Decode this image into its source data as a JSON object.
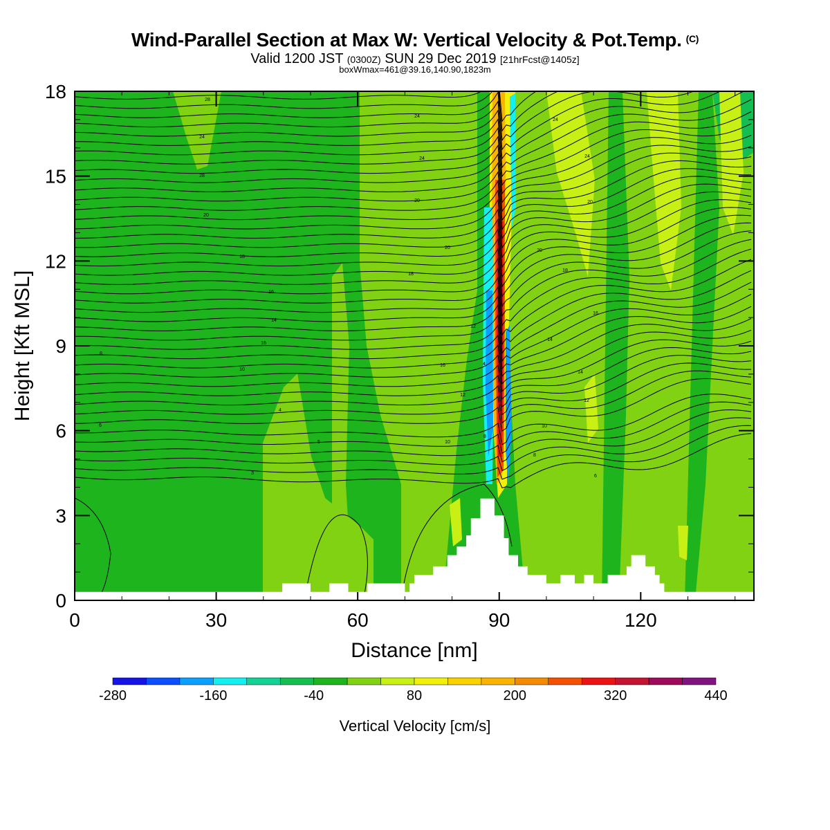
{
  "header": {
    "title": "Wind-Parallel Section at Max W: Vertical Velocity & Pot.Temp.",
    "copyright": "(C)",
    "valid_prefix": "Valid 1200 JST",
    "valid_utc": "(0300Z)",
    "valid_date": "SUN 29 Dec 2019",
    "forecast_info": "[21hrFcst@1405z]",
    "box_info": "boxWmax=461@39.16,140.90,1823m"
  },
  "chart_data": {
    "type": "heatmap",
    "xlabel": "Distance [nm]",
    "ylabel": "Height [Kft MSL]",
    "xlim": [
      0,
      144
    ],
    "ylim": [
      0,
      18
    ],
    "xticks": [
      0,
      30,
      60,
      90,
      120
    ],
    "yticks": [
      0,
      3,
      6,
      9,
      12,
      15,
      18
    ],
    "colorbar": {
      "label": "Vertical Velocity [cm/s]",
      "levels": [
        -280,
        -240,
        -200,
        -160,
        -120,
        -80,
        -40,
        0,
        40,
        80,
        120,
        160,
        200,
        240,
        280,
        320,
        360,
        400,
        440
      ],
      "tick_labels": [
        "-280",
        "-160",
        "-40",
        "80",
        "200",
        "320",
        "440"
      ],
      "colors": [
        "#1414e6",
        "#0a50ff",
        "#0aa0ff",
        "#14f0f0",
        "#14d296",
        "#14be50",
        "#1eb41e",
        "#82d214",
        "#c8f014",
        "#f0f00a",
        "#fad200",
        "#fab400",
        "#f58c00",
        "#f55000",
        "#eb1414",
        "#c31432",
        "#a00a5a",
        "#821482"
      ]
    },
    "theta_contour_labels": [
      "28",
      "24",
      "28",
      "20",
      "18",
      "16",
      "14",
      "16",
      "10",
      "8",
      "6",
      "4",
      "3",
      "24",
      "24",
      "20",
      "20",
      "18",
      "12",
      "16",
      "12",
      "10",
      "8",
      "5",
      "24",
      "24",
      "20",
      "20",
      "18",
      "16",
      "14",
      "14",
      "12",
      "10",
      "8",
      "6",
      "4"
    ],
    "terrain_profile_kft": [
      [
        0,
        0.3
      ],
      [
        44,
        0.3
      ],
      [
        44,
        0.6
      ],
      [
        50,
        0.6
      ],
      [
        50,
        0.3
      ],
      [
        54,
        0.3
      ],
      [
        54,
        0.6
      ],
      [
        58,
        0.6
      ],
      [
        58,
        0.3
      ],
      [
        62,
        0.3
      ],
      [
        62,
        0.6
      ],
      [
        70,
        0.6
      ],
      [
        70,
        0.3
      ],
      [
        71,
        0.3
      ],
      [
        71,
        0.6
      ],
      [
        72,
        0.6
      ],
      [
        72,
        0.9
      ],
      [
        76,
        0.9
      ],
      [
        76,
        1.2
      ],
      [
        79,
        1.2
      ],
      [
        79,
        1.6
      ],
      [
        81,
        1.6
      ],
      [
        81,
        1.9
      ],
      [
        83,
        1.9
      ],
      [
        83,
        2.3
      ],
      [
        84,
        2.3
      ],
      [
        84,
        2.9
      ],
      [
        86,
        2.9
      ],
      [
        86,
        3.6
      ],
      [
        89,
        3.6
      ],
      [
        89,
        3.0
      ],
      [
        91,
        3.0
      ],
      [
        91,
        2.2
      ],
      [
        92,
        2.2
      ],
      [
        92,
        1.6
      ],
      [
        94,
        1.6
      ],
      [
        94,
        1.2
      ],
      [
        96,
        1.2
      ],
      [
        96,
        0.9
      ],
      [
        100,
        0.9
      ],
      [
        100,
        0.6
      ],
      [
        103,
        0.6
      ],
      [
        103,
        0.9
      ],
      [
        106,
        0.9
      ],
      [
        106,
        0.6
      ],
      [
        108,
        0.6
      ],
      [
        108,
        0.9
      ],
      [
        110,
        0.9
      ],
      [
        110,
        0.6
      ],
      [
        113,
        0.6
      ],
      [
        113,
        0.9
      ],
      [
        117,
        0.9
      ],
      [
        117,
        1.2
      ],
      [
        118,
        1.2
      ],
      [
        118,
        1.6
      ],
      [
        121,
        1.6
      ],
      [
        121,
        1.2
      ],
      [
        123,
        1.2
      ],
      [
        123,
        0.9
      ],
      [
        124,
        0.9
      ],
      [
        124,
        0.6
      ],
      [
        125,
        0.6
      ],
      [
        125,
        0.3
      ],
      [
        144,
        0.3
      ]
    ]
  }
}
